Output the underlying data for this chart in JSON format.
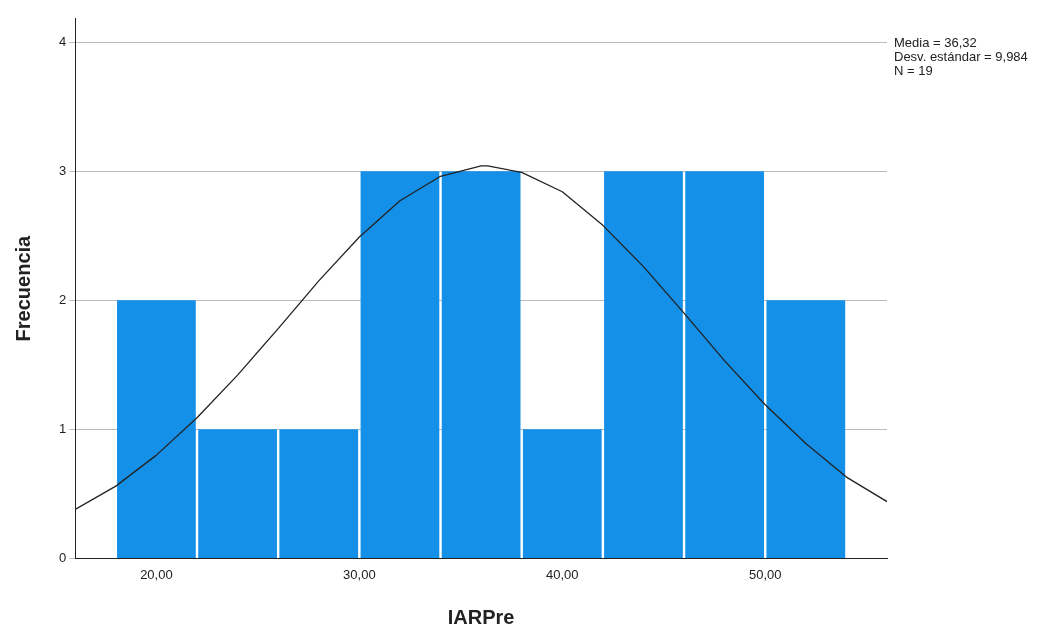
{
  "chart_data": {
    "type": "histogram",
    "xlabel": "IARPre",
    "ylabel": "Frecuencia",
    "bins": [
      18,
      22,
      26,
      30,
      34,
      38,
      42,
      46,
      50,
      54
    ],
    "values": [
      2,
      1,
      1,
      3,
      3,
      1,
      3,
      3,
      2
    ],
    "color": "#1490e8",
    "series": [
      {
        "type": "line",
        "color": "#222222",
        "x": [
          16,
          18,
          20,
          22,
          24,
          26,
          28,
          30,
          32,
          34,
          36,
          36.32,
          38,
          40,
          42,
          44,
          46,
          48,
          50,
          52,
          54,
          56
        ],
        "values": [
          0.38,
          0.56,
          0.8,
          1.09,
          1.42,
          1.78,
          2.15,
          2.49,
          2.77,
          2.96,
          3.04,
          3.04,
          2.99,
          2.84,
          2.58,
          2.26,
          1.9,
          1.53,
          1.19,
          0.89,
          0.63,
          0.44
        ]
      }
    ],
    "xlim": [
      16,
      56
    ],
    "xticks": [
      {
        "value": 20,
        "label": "20,00"
      },
      {
        "value": 30,
        "label": "30,00"
      },
      {
        "value": 40,
        "label": "40,00"
      },
      {
        "value": 50,
        "label": "50,00"
      }
    ],
    "ylim": [
      0,
      4.18
    ],
    "yticks": [
      0,
      1,
      2,
      3,
      4
    ],
    "grid": "y",
    "legend": false,
    "marker": "none",
    "line_style": "solid",
    "annotations": [
      "Media = 36,32",
      "Desv. estándar = 9,984",
      "N = 19"
    ]
  }
}
